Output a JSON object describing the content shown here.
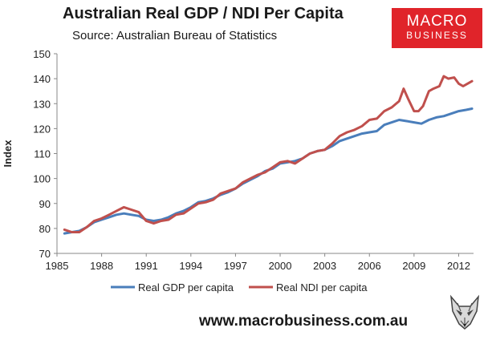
{
  "chart_data": {
    "type": "line",
    "title": "Australian Real GDP / NDI Per Capita",
    "subtitle": "Source: Australian Bureau of Statistics",
    "xlabel": "",
    "ylabel": "Index",
    "xlim": [
      1985,
      2013
    ],
    "ylim": [
      70,
      150
    ],
    "x_ticks": [
      "1985",
      "1988",
      "1991",
      "1994",
      "1997",
      "2000",
      "2003",
      "2006",
      "2009",
      "2012"
    ],
    "y_ticks": [
      "70",
      "80",
      "90",
      "100",
      "110",
      "120",
      "130",
      "140",
      "150"
    ],
    "grid": false,
    "legend_position": "bottom",
    "series": [
      {
        "name": "Real GDP per capita",
        "color": "#4a7ebb",
        "x": [
          1985.5,
          1986,
          1986.5,
          1987,
          1987.5,
          1988,
          1988.5,
          1989,
          1989.5,
          1990,
          1990.5,
          1991,
          1991.5,
          1992,
          1992.5,
          1993,
          1993.5,
          1994,
          1994.5,
          1995,
          1995.5,
          1996,
          1996.5,
          1997,
          1997.5,
          1998,
          1998.5,
          1999,
          1999.5,
          2000,
          2000.5,
          2001,
          2001.5,
          2002,
          2002.5,
          2003,
          2003.5,
          2004,
          2004.5,
          2005,
          2005.5,
          2006,
          2006.5,
          2007,
          2007.5,
          2008,
          2008.5,
          2009,
          2009.5,
          2010,
          2010.5,
          2011,
          2011.5,
          2012,
          2012.5,
          2012.9
        ],
        "values": [
          78,
          78.5,
          79,
          80.5,
          82.5,
          83.5,
          84.5,
          85.5,
          86,
          85.5,
          85,
          83.5,
          83,
          83.5,
          84.5,
          86,
          87,
          88.5,
          90.5,
          91,
          92,
          93.5,
          94.5,
          96,
          98,
          99.5,
          101,
          103,
          104,
          106,
          106.5,
          107,
          108,
          110,
          111,
          111.5,
          113,
          115,
          116,
          117,
          118,
          118.5,
          119,
          121.5,
          122.5,
          123.5,
          123,
          122.5,
          122,
          123.5,
          124.5,
          125,
          126,
          127,
          127.5,
          128
        ]
      },
      {
        "name": "Real NDI per capita",
        "color": "#c0504d",
        "x": [
          1985.5,
          1986,
          1986.5,
          1987,
          1987.5,
          1988,
          1988.5,
          1989,
          1989.5,
          1990,
          1990.5,
          1991,
          1991.5,
          1992,
          1992.5,
          1993,
          1993.5,
          1994,
          1994.5,
          1995,
          1995.5,
          1996,
          1996.5,
          1997,
          1997.5,
          1998,
          1998.5,
          1999,
          1999.5,
          2000,
          2000.5,
          2001,
          2001.5,
          2002,
          2002.5,
          2003,
          2003.5,
          2004,
          2004.5,
          2005,
          2005.5,
          2006,
          2006.5,
          2007,
          2007.5,
          2008,
          2008.3,
          2008.6,
          2009,
          2009.3,
          2009.6,
          2010,
          2010.3,
          2010.7,
          2011,
          2011.3,
          2011.7,
          2012,
          2012.3,
          2012.6,
          2012.9
        ],
        "values": [
          79.5,
          78.5,
          78.5,
          80.5,
          83,
          84,
          85.5,
          87,
          88.5,
          87.5,
          86.5,
          83,
          82,
          83,
          83.5,
          85.5,
          86,
          88,
          90,
          90.5,
          91.5,
          94,
          95,
          96,
          98.5,
          100,
          101.5,
          102.5,
          104.5,
          106.5,
          107,
          106,
          108,
          110,
          111,
          111.5,
          114,
          117,
          118.5,
          119.5,
          121,
          123.5,
          124,
          127,
          128.5,
          131,
          136,
          132,
          127,
          127,
          129,
          135,
          136,
          137,
          141,
          140,
          140.5,
          138,
          137,
          138,
          139
        ]
      }
    ]
  },
  "logo": {
    "line1": "MACRO",
    "line2": "BUSINESS"
  },
  "footer": {
    "url": "www.macrobusiness.com.au"
  }
}
